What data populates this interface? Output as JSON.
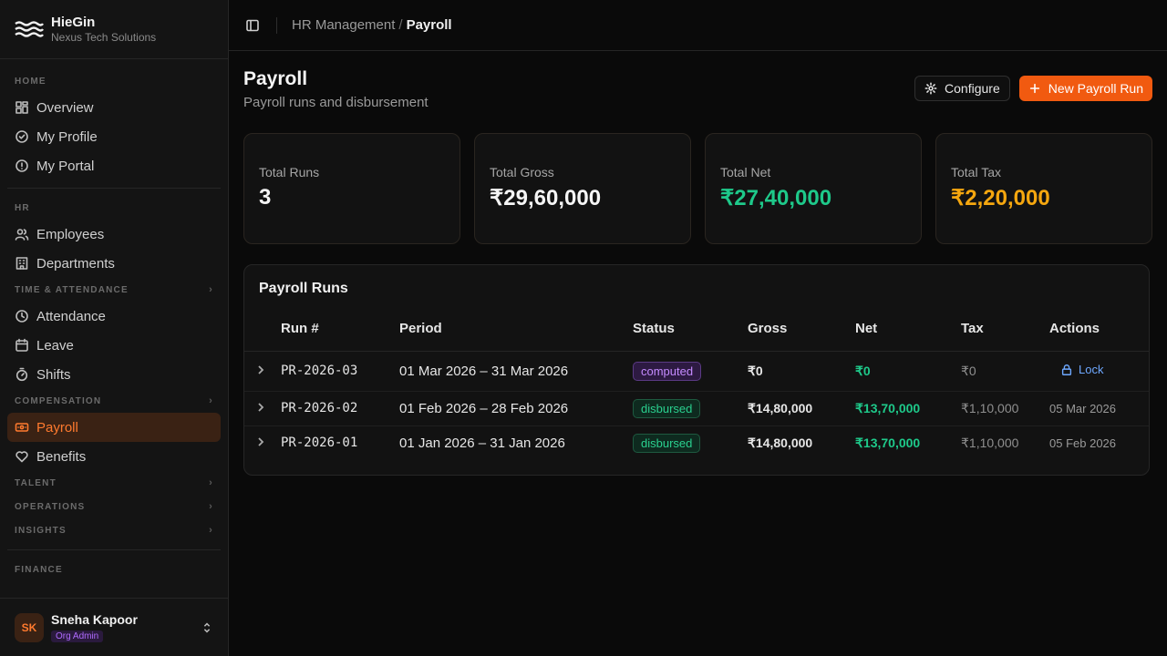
{
  "brand": {
    "name": "HieGin",
    "org": "Nexus Tech Solutions"
  },
  "sidebar": {
    "sections": {
      "home": "HOME",
      "hr": "HR",
      "time": "TIME & ATTENDANCE",
      "compensation": "COMPENSATION",
      "talent": "TALENT",
      "operations": "OPERATIONS",
      "insights": "INSIGHTS",
      "finance": "FINANCE"
    },
    "items": {
      "overview": "Overview",
      "my_profile": "My Profile",
      "my_portal": "My Portal",
      "employees": "Employees",
      "departments": "Departments",
      "attendance": "Attendance",
      "leave": "Leave",
      "shifts": "Shifts",
      "payroll": "Payroll",
      "benefits": "Benefits"
    },
    "active": "Payroll"
  },
  "user": {
    "initials": "SK",
    "name": "Sneha Kapoor",
    "role": "Org Admin"
  },
  "breadcrumb": {
    "parent": "HR Management",
    "separator": "/",
    "current": "Payroll"
  },
  "page": {
    "title": "Payroll",
    "subtitle": "Payroll runs and disbursement"
  },
  "buttons": {
    "configure": "Configure",
    "new_run": "New Payroll Run"
  },
  "stats": [
    {
      "label": "Total Runs",
      "value": "3",
      "color": "#f5f5f5"
    },
    {
      "label": "Total Gross",
      "value": "₹29,60,000",
      "color": "#f5f5f5"
    },
    {
      "label": "Total Net",
      "value": "₹27,40,000",
      "color": "#1ec98a"
    },
    {
      "label": "Total Tax",
      "value": "₹2,20,000",
      "color": "#f5a70f"
    }
  ],
  "table": {
    "title": "Payroll Runs",
    "columns": [
      "Run #",
      "Period",
      "Status",
      "Gross",
      "Net",
      "Tax",
      "Actions"
    ],
    "rows": [
      {
        "run": "PR-2026-03",
        "period": "01 Mar 2026 – 31 Mar 2026",
        "status": "computed",
        "gross": "₹0",
        "net": "₹0",
        "tax": "₹0",
        "action": "Lock"
      },
      {
        "run": "PR-2026-02",
        "period": "01 Feb 2026 – 28 Feb 2026",
        "status": "disbursed",
        "gross": "₹14,80,000",
        "net": "₹13,70,000",
        "tax": "₹1,10,000",
        "action": "05 Mar 2026"
      },
      {
        "run": "PR-2026-01",
        "period": "01 Jan 2026 – 31 Jan 2026",
        "status": "disbursed",
        "gross": "₹14,80,000",
        "net": "₹13,70,000",
        "tax": "₹1,10,000",
        "action": "05 Feb 2026"
      }
    ]
  },
  "colors": {
    "accent": "#f15a10",
    "net": "#1ec98a",
    "tax": "#f5a70f",
    "computed": "#c58bff",
    "disbursed": "#2ad08f",
    "link": "#6ea8ff"
  }
}
